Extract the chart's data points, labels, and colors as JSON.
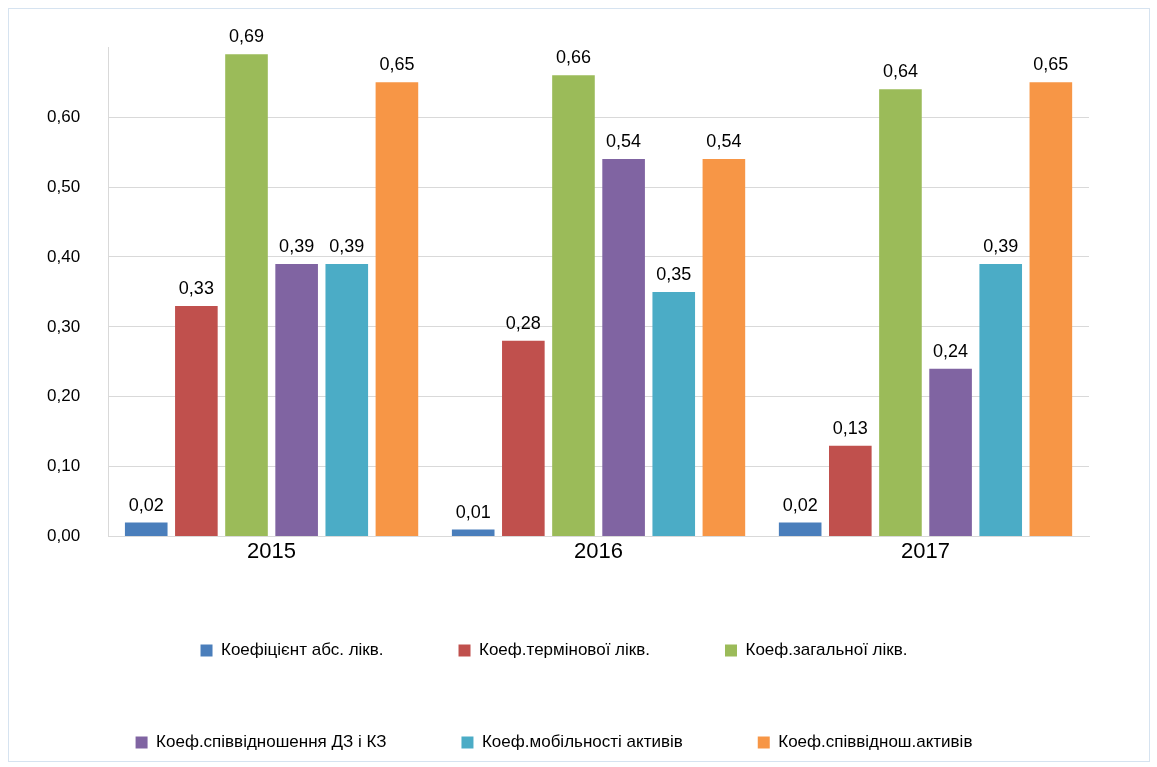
{
  "chart_data": {
    "type": "bar",
    "categories": [
      "2015",
      "2016",
      "2017"
    ],
    "series": [
      {
        "name": "Коефіцієнт абс. лікв.",
        "color": "#4a7ebb",
        "values": [
          0.02,
          0.01,
          0.02
        ],
        "value_labels": [
          "0,02",
          "0,01",
          "0,02"
        ]
      },
      {
        "name": "Коеф.термінової лікв.",
        "color": "#c0504d",
        "values": [
          0.33,
          0.28,
          0.13
        ],
        "value_labels": [
          "0,33",
          "0,28",
          "0,13"
        ]
      },
      {
        "name": "Коеф.загальної лікв.",
        "color": "#9bbb59",
        "values": [
          0.69,
          0.66,
          0.64
        ],
        "value_labels": [
          "0,69",
          "0,66",
          "0,64"
        ]
      },
      {
        "name": "Коеф.співвідношення ДЗ і КЗ",
        "color": "#8064a2",
        "values": [
          0.39,
          0.54,
          0.24
        ],
        "value_labels": [
          "0,39",
          "0,54",
          "0,24"
        ]
      },
      {
        "name": "Коеф.мобільності активів",
        "color": "#4bacc6",
        "values": [
          0.39,
          0.35,
          0.39
        ],
        "value_labels": [
          "0,39",
          "0,35",
          "0,39"
        ]
      },
      {
        "name": "Коеф.співвіднош.активів",
        "color": "#f79646",
        "values": [
          0.65,
          0.54,
          0.65
        ],
        "value_labels": [
          "0,65",
          "0,54",
          "0,65"
        ]
      }
    ],
    "ylim": [
      0,
      0.7
    ],
    "yticks": [
      {
        "value": 0,
        "label": "0,00"
      },
      {
        "value": 0.1,
        "label": "0,10"
      },
      {
        "value": 0.2,
        "label": "0,20"
      },
      {
        "value": 0.3,
        "label": "0,30"
      },
      {
        "value": 0.4,
        "label": "0,40"
      },
      {
        "value": 0.5,
        "label": "0,50"
      },
      {
        "value": 0.6,
        "label": "0,60"
      }
    ],
    "grid": "y",
    "legend": "bottom"
  }
}
